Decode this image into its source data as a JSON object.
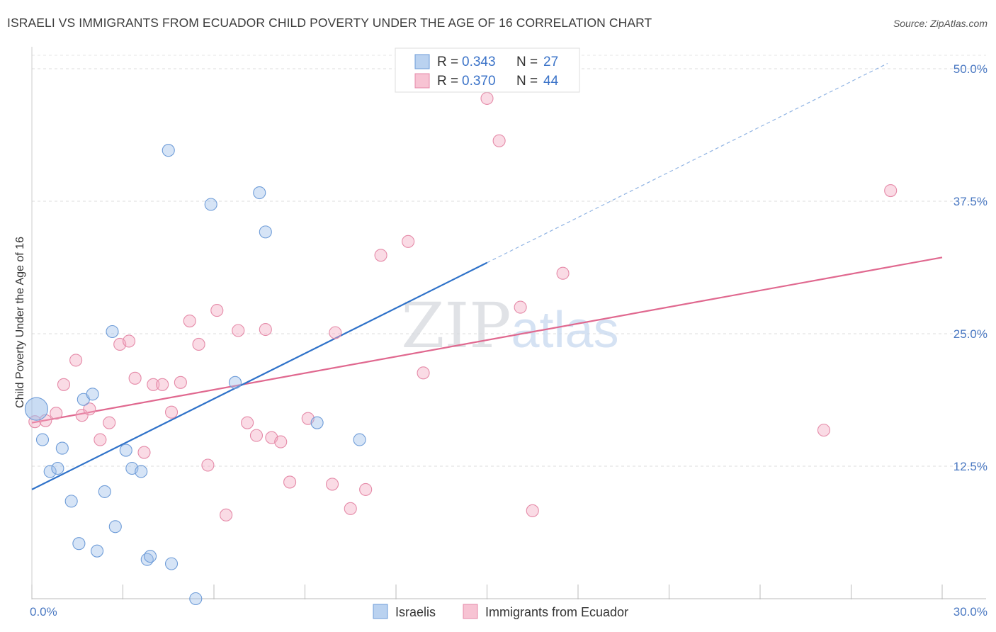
{
  "chart_data": {
    "type": "scatter",
    "title": "ISRAELI VS IMMIGRANTS FROM ECUADOR CHILD POVERTY UNDER THE AGE OF 16 CORRELATION CHART",
    "source": "Source: ZipAtlas.com",
    "ylabel": "Child Poverty Under the Age of 16",
    "xlim": [
      0,
      30
    ],
    "ylim": [
      0,
      50
    ],
    "x_tick_labels": [
      "0.0%",
      "30.0%"
    ],
    "y_ticks": [
      12.5,
      25.0,
      37.5,
      50.0
    ],
    "y_tick_labels": [
      "12.5%",
      "25.0%",
      "37.5%",
      "50.0%"
    ],
    "watermark": "ZIPatlas",
    "series": [
      {
        "name": "Israelis",
        "color": "#9dbfe9",
        "line_color": "#2f72c9",
        "R": "0.343",
        "N": "27",
        "regression": {
          "x0": 0,
          "y0": 10.3,
          "x1": 15.0,
          "y1": 31.7,
          "dash_x2": 28.2,
          "dash_y2": 50.5
        },
        "points": [
          [
            0.15,
            17.9
          ],
          [
            0.35,
            15.0
          ],
          [
            1.0,
            14.2
          ],
          [
            0.6,
            12.0
          ],
          [
            0.85,
            12.3
          ],
          [
            1.7,
            18.8
          ],
          [
            2.0,
            19.3
          ],
          [
            2.65,
            25.2
          ],
          [
            1.3,
            9.2
          ],
          [
            1.55,
            5.2
          ],
          [
            2.4,
            10.1
          ],
          [
            2.15,
            4.5
          ],
          [
            2.75,
            6.8
          ],
          [
            3.1,
            14.0
          ],
          [
            3.3,
            12.3
          ],
          [
            3.6,
            12.0
          ],
          [
            3.8,
            3.7
          ],
          [
            3.9,
            4.0
          ],
          [
            4.6,
            3.3
          ],
          [
            5.4,
            0.0
          ],
          [
            4.5,
            42.3
          ],
          [
            5.9,
            37.2
          ],
          [
            7.5,
            38.3
          ],
          [
            7.7,
            34.6
          ],
          [
            6.7,
            20.4
          ],
          [
            9.4,
            16.6
          ],
          [
            10.8,
            15.0
          ]
        ]
      },
      {
        "name": "Immigrants from Ecuador",
        "color": "#f4a9c1",
        "line_color": "#e0688f",
        "R": "0.370",
        "N": "44",
        "regression": {
          "x0": 0,
          "y0": 16.6,
          "x1": 30.0,
          "y1": 32.2
        },
        "points": [
          [
            0.1,
            16.7
          ],
          [
            0.45,
            16.8
          ],
          [
            0.8,
            17.5
          ],
          [
            1.05,
            20.2
          ],
          [
            1.45,
            22.5
          ],
          [
            1.65,
            17.3
          ],
          [
            1.9,
            17.9
          ],
          [
            2.25,
            15.0
          ],
          [
            2.55,
            16.6
          ],
          [
            2.9,
            24.0
          ],
          [
            3.2,
            24.3
          ],
          [
            3.4,
            20.8
          ],
          [
            3.7,
            13.8
          ],
          [
            4.0,
            20.2
          ],
          [
            4.3,
            20.2
          ],
          [
            4.6,
            17.6
          ],
          [
            4.9,
            20.4
          ],
          [
            5.2,
            26.2
          ],
          [
            5.5,
            24.0
          ],
          [
            5.8,
            12.6
          ],
          [
            6.1,
            27.2
          ],
          [
            6.4,
            7.9
          ],
          [
            6.8,
            25.3
          ],
          [
            7.1,
            16.6
          ],
          [
            7.4,
            15.4
          ],
          [
            7.7,
            25.4
          ],
          [
            7.9,
            15.2
          ],
          [
            8.2,
            14.8
          ],
          [
            8.5,
            11.0
          ],
          [
            9.1,
            17.0
          ],
          [
            9.9,
            10.8
          ],
          [
            10.0,
            25.1
          ],
          [
            10.5,
            8.5
          ],
          [
            11.0,
            10.3
          ],
          [
            11.5,
            32.4
          ],
          [
            12.4,
            33.7
          ],
          [
            12.9,
            21.3
          ],
          [
            15.0,
            47.2
          ],
          [
            15.4,
            43.2
          ],
          [
            16.1,
            27.5
          ],
          [
            16.5,
            8.3
          ],
          [
            17.5,
            30.7
          ],
          [
            26.1,
            15.9
          ],
          [
            28.3,
            38.5
          ]
        ]
      }
    ]
  },
  "legend": {
    "r_label": "R =",
    "n_label": "N ="
  }
}
